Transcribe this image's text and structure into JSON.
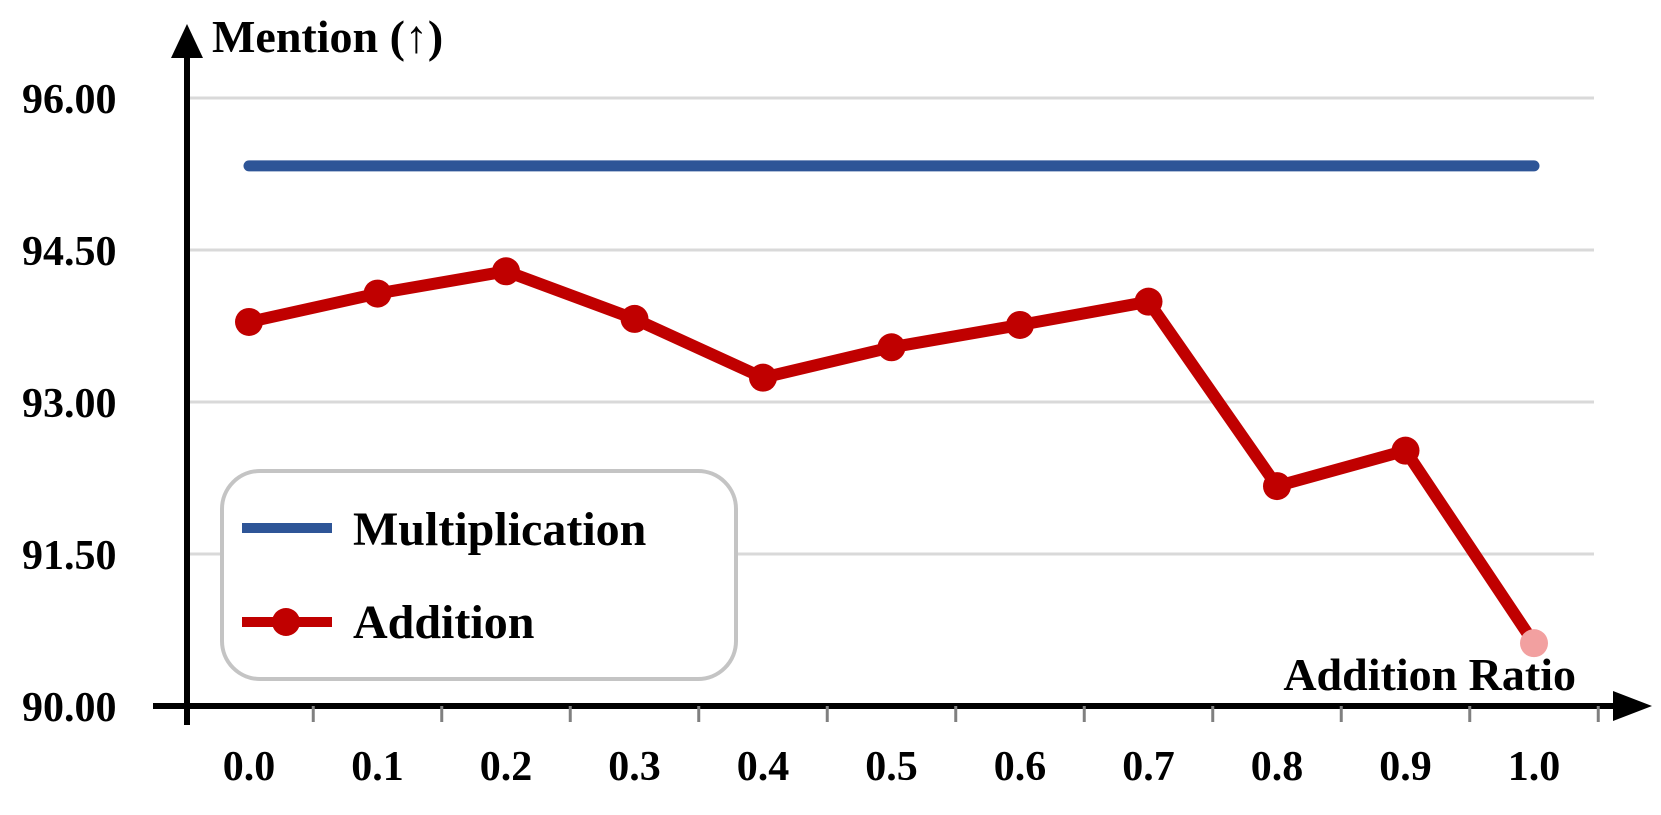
{
  "chart_data": {
    "type": "line",
    "ylabel": "Mention (↑)",
    "xlabel": "Addition Ratio",
    "x": [
      0.0,
      0.1,
      0.2,
      0.3,
      0.4,
      0.5,
      0.6,
      0.7,
      0.8,
      0.9,
      1.0
    ],
    "x_tick_labels": [
      "0.0",
      "0.1",
      "0.2",
      "0.3",
      "0.4",
      "0.5",
      "0.6",
      "0.7",
      "0.8",
      "0.9",
      "1.0"
    ],
    "y_ticks": [
      90.0,
      91.5,
      93.0,
      94.5,
      96.0
    ],
    "y_tick_labels": [
      "90.00",
      "91.50",
      "93.00",
      "94.50",
      "96.00"
    ],
    "ylim": [
      90.0,
      96.0
    ],
    "grid": true,
    "legend_position": "bottom-left",
    "series": [
      {
        "name": "Multiplication",
        "color": "#2e5597",
        "marker": "none",
        "values": [
          95.33,
          95.33,
          95.33,
          95.33,
          95.33,
          95.33,
          95.33,
          95.33,
          95.33,
          95.33,
          95.33
        ]
      },
      {
        "name": "Addition",
        "color": "#c00000",
        "marker": "circle",
        "values": [
          93.79,
          94.07,
          94.29,
          93.82,
          93.24,
          93.54,
          93.76,
          93.99,
          92.17,
          92.52,
          90.62
        ]
      }
    ]
  }
}
